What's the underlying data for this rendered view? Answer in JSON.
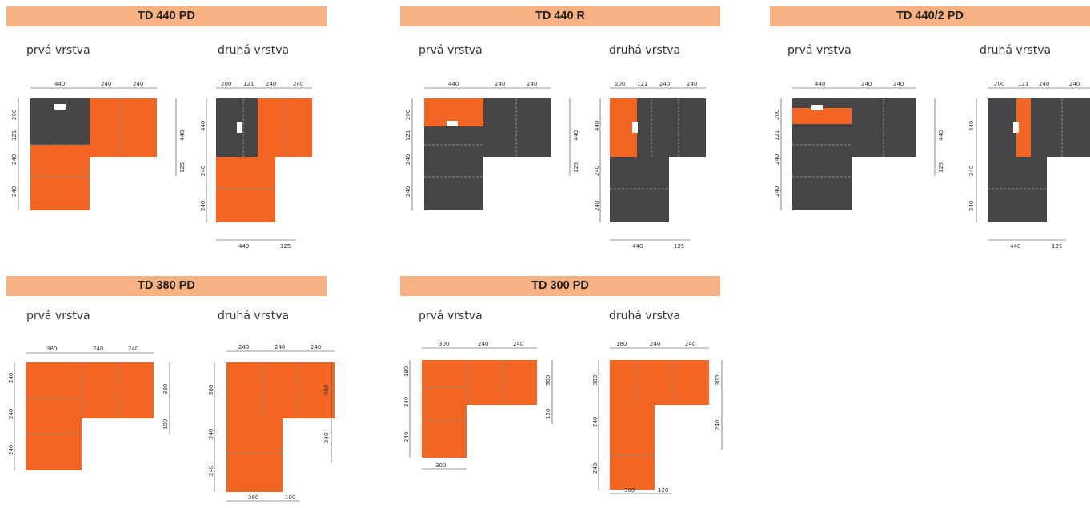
{
  "sections": [
    {
      "id": "td440pd",
      "title": "TD 440 PD",
      "first_label": "prvá vrstva",
      "second_label": "druhá vrstva",
      "first": {
        "top": [
          "440",
          "240",
          "240"
        ],
        "left": [
          "200",
          "121",
          "240",
          "240"
        ],
        "right": [
          "440",
          "125"
        ],
        "bottom": []
      },
      "second": {
        "top": [
          "200",
          "121",
          "240",
          "240"
        ],
        "left": [
          "440",
          "240",
          "240"
        ],
        "right": [],
        "bottom": [
          "440",
          "125"
        ]
      }
    },
    {
      "id": "td440r",
      "title": "TD 440 R",
      "first_label": "prvá vrstva",
      "second_label": "druhá vrstva",
      "first": {
        "top": [
          "440",
          "240",
          "240"
        ],
        "left": [
          "200",
          "121",
          "240",
          "240"
        ],
        "right": [
          "440",
          "125"
        ],
        "bottom": []
      },
      "second": {
        "top": [
          "200",
          "121",
          "240",
          "240"
        ],
        "left": [
          "440",
          "240",
          "240"
        ],
        "right": [],
        "bottom": [
          "440",
          "125"
        ]
      }
    },
    {
      "id": "td4402pd",
      "title": "TD 440/2 PD",
      "first_label": "prvá vrstva",
      "second_label": "druhá vrstva",
      "first": {
        "top": [
          "440",
          "240",
          "240"
        ],
        "left": [
          "200",
          "121",
          "240",
          "240"
        ],
        "right": [
          "440",
          "125"
        ],
        "bottom": []
      },
      "second": {
        "top": [
          "200",
          "121",
          "240",
          "240"
        ],
        "left": [
          "440",
          "240",
          "240"
        ],
        "right": [],
        "bottom": [
          "440",
          "125"
        ]
      }
    },
    {
      "id": "td380pd",
      "title": "TD 380 PD",
      "first_label": "prvá vrstva",
      "second_label": "druhá vrstva",
      "first": {
        "top": [
          "380",
          "240",
          "240"
        ],
        "left": [
          "240",
          "240",
          "240"
        ],
        "right": [
          "380",
          "100"
        ],
        "bottom": []
      },
      "second": {
        "top": [
          "240",
          "240",
          "240"
        ],
        "left": [
          "380",
          "240",
          "240"
        ],
        "right": [
          "380",
          "240"
        ],
        "bottom": [
          "380",
          "100"
        ]
      }
    },
    {
      "id": "td300pd",
      "title": "TD 300 PD",
      "first_label": "prvá vrstva",
      "second_label": "druhá vrstva",
      "first": {
        "top": [
          "300",
          "240",
          "240"
        ],
        "left": [
          "180",
          "240",
          "240"
        ],
        "right": [
          "300",
          "120"
        ],
        "bottom": [
          "300"
        ]
      },
      "second": {
        "top": [
          "180",
          "240",
          "240"
        ],
        "left": [
          "300",
          "240",
          "240"
        ],
        "right": [
          "300",
          "240"
        ],
        "bottom": [
          "300",
          "120"
        ]
      }
    }
  ],
  "colors": {
    "header": "#f8b183",
    "orange": "#f26522",
    "dark": "#464648",
    "seam": "#8a8a8a",
    "notch": "#ffffff"
  }
}
